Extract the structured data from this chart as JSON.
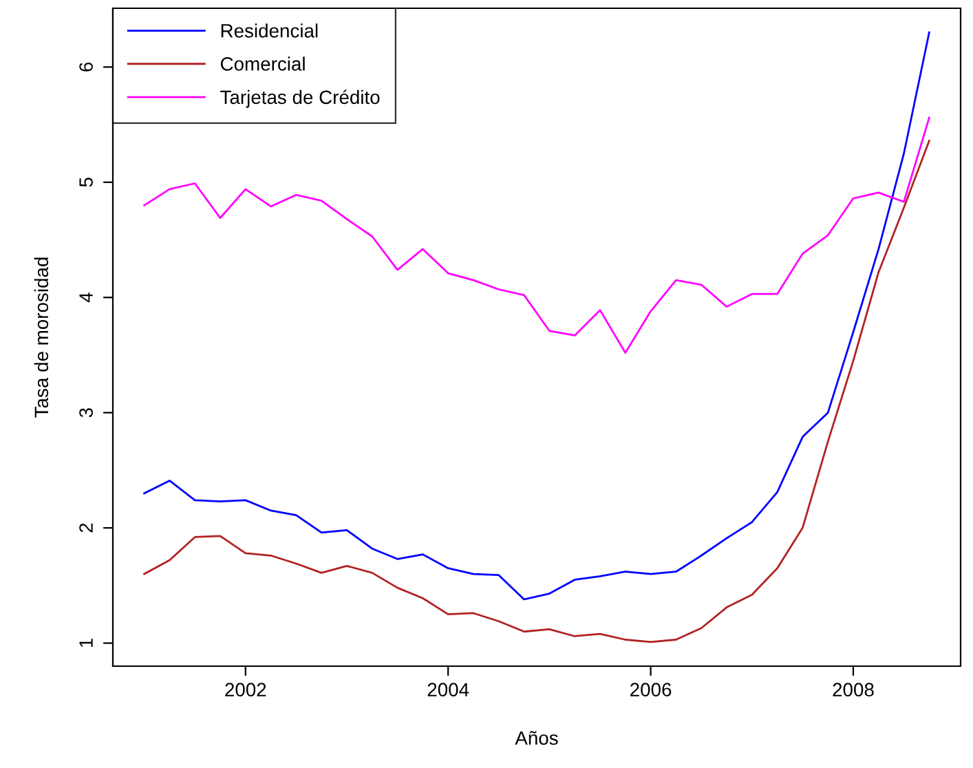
{
  "chart_data": {
    "type": "line",
    "xlabel": "Años",
    "ylabel": "Tasa de morosidad",
    "x": [
      2001.0,
      2001.25,
      2001.5,
      2001.75,
      2002.0,
      2002.25,
      2002.5,
      2002.75,
      2003.0,
      2003.25,
      2003.5,
      2003.75,
      2004.0,
      2004.25,
      2004.5,
      2004.75,
      2005.0,
      2005.25,
      2005.5,
      2005.75,
      2006.0,
      2006.25,
      2006.5,
      2006.75,
      2007.0,
      2007.25,
      2007.5,
      2007.75,
      2008.0,
      2008.25,
      2008.5,
      2008.75
    ],
    "series": [
      {
        "name": "Residencial",
        "color": "#0000ff",
        "values": [
          2.3,
          2.41,
          2.24,
          2.23,
          2.24,
          2.15,
          2.11,
          1.96,
          1.98,
          1.82,
          1.73,
          1.77,
          1.65,
          1.6,
          1.59,
          1.38,
          1.43,
          1.55,
          1.58,
          1.62,
          1.6,
          1.62,
          1.76,
          1.91,
          2.05,
          2.31,
          2.79,
          3.0,
          3.7,
          4.42,
          5.25,
          6.3
        ]
      },
      {
        "name": "Comercial",
        "color": "#b22222",
        "values": [
          1.6,
          1.72,
          1.92,
          1.93,
          1.78,
          1.76,
          1.69,
          1.61,
          1.67,
          1.61,
          1.48,
          1.39,
          1.25,
          1.26,
          1.19,
          1.1,
          1.12,
          1.06,
          1.08,
          1.03,
          1.01,
          1.03,
          1.13,
          1.31,
          1.42,
          1.65,
          2.0,
          2.75,
          3.45,
          4.22,
          4.78,
          5.36
        ]
      },
      {
        "name": "Tarjetas de Crédito",
        "color": "#ff00ff",
        "values": [
          4.8,
          4.94,
          4.99,
          4.69,
          4.94,
          4.79,
          4.89,
          4.84,
          4.68,
          4.53,
          4.24,
          4.42,
          4.21,
          4.15,
          4.07,
          4.02,
          3.71,
          3.67,
          3.89,
          3.52,
          3.88,
          4.15,
          4.11,
          3.92,
          4.03,
          4.03,
          4.38,
          4.54,
          4.86,
          4.91,
          4.83,
          5.56
        ]
      }
    ],
    "xlim": [
      2000.69,
      2009.06
    ],
    "xticks": [
      2002,
      2004,
      2006,
      2008
    ],
    "ylim": [
      0.8,
      6.51
    ],
    "yticks": [
      1,
      2,
      3,
      4,
      5,
      6
    ],
    "grid": false,
    "legend": "top left",
    "marker": "none",
    "line_style": "solid"
  }
}
